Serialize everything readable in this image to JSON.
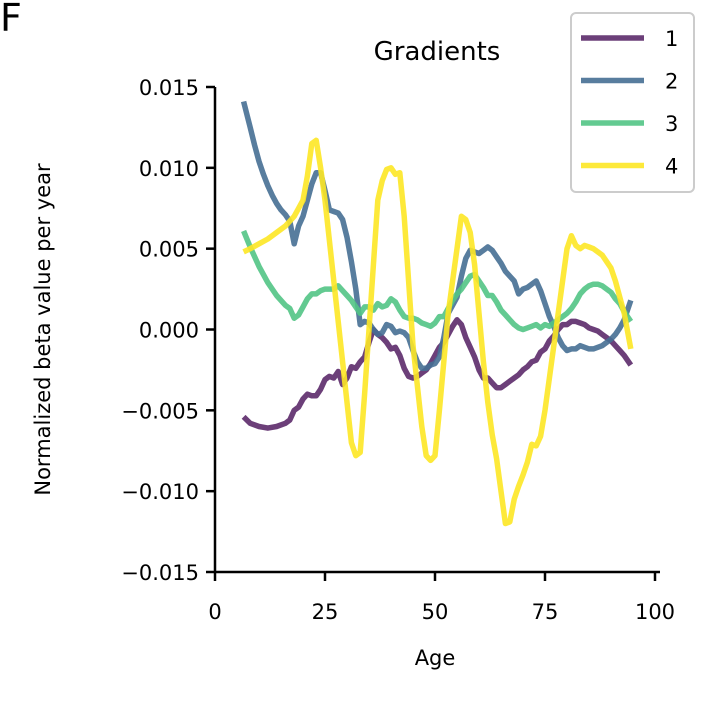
{
  "panel_label": "F",
  "chart_data": {
    "type": "line",
    "title": "Gradients",
    "xlabel": "Age",
    "ylabel": "Normalized beta value per year",
    "xlim": [
      0,
      100
    ],
    "ylim": [
      -0.015,
      0.015
    ],
    "xticks": [
      0,
      25,
      50,
      75,
      100
    ],
    "xtick_labels": [
      "0",
      "25",
      "50",
      "75",
      "100"
    ],
    "yticks": [
      -0.015,
      -0.01,
      -0.005,
      0.0,
      0.005,
      0.01,
      0.015
    ],
    "ytick_labels": [
      "−0.015",
      "−0.010",
      "−0.005",
      "0.000",
      "0.005",
      "0.010",
      "0.015"
    ],
    "grid": false,
    "legend_position": "top-right",
    "series": [
      {
        "name": "1",
        "color": "#5c2a6a",
        "x": [
          6.5,
          8,
          10,
          12,
          14,
          16,
          17,
          18,
          19,
          20,
          21,
          22,
          23,
          24,
          25,
          26,
          27,
          28,
          29,
          30,
          31,
          32,
          33,
          34,
          35,
          36,
          37,
          38,
          39,
          40,
          41,
          42,
          43,
          44,
          45,
          46,
          47,
          48,
          49,
          50,
          51,
          52,
          53,
          54,
          55,
          56,
          57,
          58,
          59,
          60,
          61,
          62,
          63,
          64,
          65,
          66,
          67,
          68,
          69,
          70,
          71,
          72,
          73,
          74,
          75,
          76,
          77,
          78,
          79,
          80,
          81,
          82,
          83,
          84,
          85,
          86,
          87,
          88,
          89,
          90,
          91,
          92,
          93,
          94.5
        ],
        "y": [
          -0.0054,
          -0.0058,
          -0.006,
          -0.0061,
          -0.006,
          -0.0058,
          -0.0056,
          -0.005,
          -0.0048,
          -0.0043,
          -0.004,
          -0.0041,
          -0.0041,
          -0.0037,
          -0.0031,
          -0.0029,
          -0.003,
          -0.0026,
          -0.0034,
          -0.003,
          -0.0023,
          -0.0024,
          -0.002,
          -0.0017,
          -0.0008,
          0.0,
          -0.0003,
          -0.0005,
          -0.0008,
          -0.0012,
          -0.0011,
          -0.0016,
          -0.0024,
          -0.0029,
          -0.003,
          -0.0029,
          -0.0027,
          -0.0025,
          -0.0021,
          -0.0016,
          -0.0011,
          -0.0008,
          -0.0003,
          0.0002,
          0.0006,
          0.0003,
          -0.0005,
          -0.0011,
          -0.0017,
          -0.0025,
          -0.003,
          -0.003,
          -0.0033,
          -0.0036,
          -0.0036,
          -0.0034,
          -0.0032,
          -0.003,
          -0.0028,
          -0.0025,
          -0.0023,
          -0.002,
          -0.0019,
          -0.0014,
          -0.0012,
          -0.0007,
          -0.0004,
          0.0,
          0.0003,
          0.0003,
          0.0005,
          0.0005,
          0.0004,
          0.0003,
          0.0001,
          0.0,
          -0.0001,
          -0.0003,
          -0.0005,
          -0.0007,
          -0.001,
          -0.0013,
          -0.0016,
          -0.0022
        ]
      },
      {
        "name": "2",
        "color": "#466f93",
        "x": [
          6.5,
          8,
          9,
          10,
          11,
          12,
          13,
          14,
          15,
          16,
          17,
          18,
          19,
          20,
          21,
          22,
          23,
          24,
          25,
          26,
          27,
          28,
          29,
          30,
          31,
          32,
          33,
          34,
          35,
          36,
          37,
          38,
          39,
          40,
          41,
          42,
          43,
          44,
          45,
          46,
          47,
          48,
          49,
          50,
          51,
          52,
          53,
          54,
          55,
          56,
          57,
          58,
          59,
          60,
          61,
          62,
          63,
          64,
          65,
          66,
          67,
          68,
          69,
          70,
          71,
          72,
          73,
          74,
          75,
          76,
          77,
          78,
          79,
          80,
          81,
          82,
          83,
          84,
          85,
          86,
          87,
          88,
          89,
          90,
          91,
          92,
          93,
          94.5
        ],
        "y": [
          0.0141,
          0.0125,
          0.0114,
          0.0104,
          0.0096,
          0.0089,
          0.0083,
          0.0078,
          0.0074,
          0.0071,
          0.0067,
          0.0053,
          0.0064,
          0.007,
          0.008,
          0.009,
          0.0097,
          0.0097,
          0.0086,
          0.0074,
          0.0073,
          0.0072,
          0.0068,
          0.0057,
          0.0042,
          0.0025,
          0.0003,
          0.0005,
          0.0004,
          0.0,
          -0.0003,
          -0.0002,
          0.0003,
          0.0002,
          -0.0002,
          -0.0001,
          -0.0002,
          -0.0005,
          -0.0013,
          -0.002,
          -0.0024,
          -0.0024,
          -0.0022,
          -0.0021,
          -0.0017,
          -0.0005,
          0.001,
          0.0015,
          0.002,
          0.0033,
          0.0044,
          0.0049,
          0.0048,
          0.0047,
          0.0049,
          0.0051,
          0.0049,
          0.0045,
          0.0041,
          0.0036,
          0.0033,
          0.003,
          0.0022,
          0.0025,
          0.0026,
          0.0028,
          0.003,
          0.0024,
          0.0016,
          0.0008,
          0.0002,
          -0.0005,
          -0.001,
          -0.0013,
          -0.0012,
          -0.0012,
          -0.001,
          -0.0011,
          -0.0012,
          -0.0012,
          -0.0011,
          -0.001,
          -0.0008,
          -0.0006,
          -0.0003,
          0.0001,
          0.0006,
          0.0018
        ]
      },
      {
        "name": "3",
        "color": "#52c485",
        "x": [
          6.5,
          8,
          10,
          12,
          14,
          16,
          17,
          18,
          19,
          20,
          21,
          22,
          23,
          24,
          25,
          26,
          27,
          28,
          29,
          30,
          31,
          32,
          33,
          34,
          35,
          36,
          37,
          38,
          39,
          40,
          41,
          42,
          43,
          44,
          45,
          46,
          47,
          48,
          49,
          50,
          51,
          52,
          53,
          54,
          55,
          56,
          57,
          58,
          59,
          60,
          61,
          62,
          63,
          64,
          65,
          66,
          67,
          68,
          69,
          70,
          71,
          72,
          73,
          74,
          75,
          76,
          77,
          78,
          79,
          80,
          81,
          82,
          83,
          84,
          85,
          86,
          87,
          88,
          89,
          90,
          91,
          92,
          93,
          94.5
        ],
        "y": [
          0.0061,
          0.0051,
          0.0039,
          0.0029,
          0.0021,
          0.0015,
          0.0013,
          0.0007,
          0.0009,
          0.0014,
          0.0019,
          0.0022,
          0.0022,
          0.0024,
          0.0025,
          0.0025,
          0.0025,
          0.0027,
          0.0024,
          0.0021,
          0.0018,
          0.0014,
          0.001,
          0.0014,
          0.0014,
          0.0012,
          0.0016,
          0.0014,
          0.0015,
          0.0019,
          0.0017,
          0.0012,
          0.0008,
          0.0007,
          0.0007,
          0.0006,
          0.0004,
          0.0003,
          0.0002,
          0.0004,
          0.0008,
          0.0008,
          0.0013,
          0.0018,
          0.0022,
          0.0025,
          0.0029,
          0.0033,
          0.0034,
          0.003,
          0.0026,
          0.0021,
          0.0021,
          0.0017,
          0.0012,
          0.0009,
          0.0006,
          0.0003,
          0.0001,
          0.0,
          0.0001,
          0.0002,
          0.0003,
          0.0001,
          0.0003,
          0.0002,
          0.0004,
          0.0006,
          0.0008,
          0.001,
          0.0013,
          0.0017,
          0.0022,
          0.0025,
          0.0027,
          0.0028,
          0.0028,
          0.0027,
          0.0025,
          0.0023,
          0.0019,
          0.0016,
          0.0011,
          0.0005
        ]
      },
      {
        "name": "4",
        "color": "#fde725",
        "x": [
          6.5,
          8,
          10,
          12,
          14,
          16,
          17,
          18,
          19,
          20,
          21,
          22,
          23,
          24,
          25,
          26,
          27,
          28,
          29,
          30,
          31,
          32,
          33,
          34,
          35,
          36,
          37,
          38,
          39,
          40,
          41,
          42,
          43,
          44,
          45,
          46,
          47,
          48,
          49,
          50,
          51,
          52,
          53,
          54,
          55,
          56,
          57,
          58,
          59,
          60,
          61,
          62,
          63,
          64,
          65,
          66,
          67,
          68,
          69,
          70,
          71,
          72,
          73,
          74,
          75,
          76,
          77,
          78,
          79,
          80,
          81,
          82,
          83,
          84,
          85,
          86,
          87,
          88,
          89,
          90,
          91,
          92,
          93,
          94.5
        ],
        "y": [
          0.0048,
          0.005,
          0.0053,
          0.0056,
          0.006,
          0.0064,
          0.0067,
          0.007,
          0.0075,
          0.008,
          0.0095,
          0.0115,
          0.0117,
          0.01,
          0.008,
          0.0055,
          0.003,
          0.0005,
          -0.002,
          -0.0045,
          -0.007,
          -0.0078,
          -0.0076,
          -0.004,
          0.0,
          0.004,
          0.008,
          0.0092,
          0.0099,
          0.01,
          0.0096,
          0.0097,
          0.007,
          0.003,
          -0.001,
          -0.0035,
          -0.006,
          -0.0078,
          -0.0081,
          -0.0078,
          -0.005,
          -0.002,
          0.001,
          0.003,
          0.005,
          0.007,
          0.0068,
          0.006,
          0.004,
          0.001,
          -0.002,
          -0.0045,
          -0.0065,
          -0.008,
          -0.01,
          -0.012,
          -0.0119,
          -0.0105,
          -0.0097,
          -0.009,
          -0.0082,
          -0.0071,
          -0.0072,
          -0.0066,
          -0.005,
          -0.003,
          -0.001,
          0.001,
          0.003,
          0.005,
          0.0058,
          0.0052,
          0.005,
          0.0052,
          0.0051,
          0.005,
          0.0048,
          0.0046,
          0.0042,
          0.0038,
          0.003,
          0.002,
          0.001,
          -0.0012
        ]
      }
    ]
  }
}
